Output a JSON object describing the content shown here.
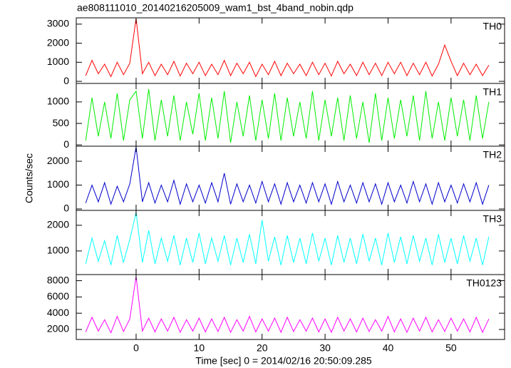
{
  "chart_data": {
    "type": "line",
    "title": "ae808111010_20140216205009_wam1_bst_4band_nobin.qdp",
    "x_label": "Time [sec] 0 = 2014/02/16 20:50:09.285",
    "y_label": "Counts/sec",
    "x": [
      -8,
      -7,
      -6,
      -5,
      -4,
      -3,
      -2,
      -1,
      0,
      1,
      2,
      3,
      4,
      5,
      6,
      7,
      8,
      9,
      10,
      11,
      12,
      13,
      14,
      15,
      16,
      17,
      18,
      19,
      20,
      21,
      22,
      23,
      24,
      25,
      26,
      27,
      28,
      29,
      30,
      31,
      32,
      33,
      34,
      35,
      36,
      37,
      38,
      39,
      40,
      41,
      42,
      43,
      44,
      45,
      46,
      47,
      48,
      49,
      50,
      51,
      52,
      53,
      54,
      55,
      56
    ],
    "xlim": [
      -9.5,
      58.5
    ],
    "xticks": [
      0,
      10,
      20,
      30,
      40,
      50
    ],
    "series": [
      {
        "name": "TH0",
        "color": "#ff0000",
        "ylim": [
          -110,
          3330
        ],
        "yticks": [
          0,
          1000,
          2000,
          3000
        ],
        "values": [
          300,
          1100,
          400,
          900,
          250,
          1000,
          350,
          950,
          3300,
          400,
          1000,
          300,
          900,
          350,
          1050,
          280,
          950,
          400,
          1000,
          300,
          900,
          350,
          1100,
          300,
          950,
          400,
          1000,
          250,
          900,
          350,
          1050,
          300,
          950,
          400,
          900,
          300,
          1000,
          350,
          950,
          280,
          1050,
          400,
          900,
          300,
          1000,
          350,
          950,
          300,
          1000,
          400,
          1000,
          300,
          950,
          350,
          1000,
          280,
          900,
          1900,
          1050,
          300,
          950,
          350,
          900,
          300,
          850
        ]
      },
      {
        "name": "TH1",
        "color": "#00ee00",
        "ylim": [
          -30,
          1430
        ],
        "yticks": [
          0,
          500,
          1000
        ],
        "values": [
          100,
          1100,
          200,
          1000,
          150,
          1200,
          100,
          1050,
          1250,
          150,
          1300,
          100,
          1050,
          200,
          1150,
          100,
          1000,
          250,
          1200,
          100,
          1100,
          150,
          1250,
          50,
          1000,
          200,
          1150,
          100,
          1050,
          150,
          1200,
          100,
          1100,
          200,
          1000,
          150,
          1250,
          100,
          1050,
          200,
          1100,
          100,
          1150,
          150,
          1000,
          50,
          1200,
          100,
          1100,
          150,
          1050,
          200,
          1150,
          100,
          1250,
          150,
          1000,
          100,
          1100,
          200,
          1050,
          100,
          1150,
          150,
          1000
        ]
      },
      {
        "name": "TH2",
        "color": "#0000cc",
        "ylim": [
          -60,
          2630
        ],
        "yticks": [
          0,
          1000,
          2000
        ],
        "values": [
          250,
          1000,
          300,
          1100,
          200,
          950,
          300,
          1050,
          2600,
          300,
          1100,
          250,
          1000,
          300,
          1200,
          200,
          1050,
          300,
          1000,
          250,
          1100,
          300,
          1500,
          200,
          1050,
          300,
          1000,
          250,
          1150,
          300,
          1050,
          200,
          1100,
          300,
          1000,
          250,
          1100,
          300,
          1050,
          200,
          1150,
          300,
          1000,
          250,
          1100,
          300,
          1050,
          200,
          1100,
          300,
          1000,
          250,
          1150,
          300,
          1050,
          200,
          1100,
          300,
          1000,
          250,
          1050,
          300,
          1100,
          200,
          1000
        ]
      },
      {
        "name": "TH3",
        "color": "#00ffff",
        "ylim": [
          80,
          2580
        ],
        "yticks": [
          1000,
          2000
        ],
        "values": [
          500,
          1500,
          600,
          1400,
          450,
          1600,
          550,
          1450,
          2500,
          550,
          1800,
          500,
          1500,
          600,
          1600,
          450,
          1500,
          550,
          1700,
          500,
          1500,
          600,
          1600,
          450,
          1500,
          550,
          1650,
          500,
          2200,
          600,
          1550,
          450,
          1600,
          550,
          1500,
          500,
          1700,
          600,
          1500,
          450,
          1600,
          550,
          1500,
          500,
          1650,
          600,
          1500,
          450,
          1700,
          550,
          1550,
          500,
          1600,
          600,
          1500,
          450,
          1650,
          550,
          1500,
          500,
          1600,
          600,
          1500,
          450,
          1550
        ]
      },
      {
        "name": "TH0123",
        "color": "#ff00ff",
        "ylim": [
          770,
          8750
        ],
        "yticks": [
          2000,
          4000,
          6000,
          8000
        ],
        "values": [
          1700,
          3500,
          1800,
          3200,
          1600,
          3600,
          1750,
          3300,
          8500,
          1800,
          3400,
          1700,
          3300,
          1800,
          3500,
          1650,
          3200,
          1800,
          3400,
          1700,
          3300,
          1750,
          3500,
          1650,
          3200,
          1800,
          3600,
          1700,
          3300,
          1800,
          3400,
          1650,
          3500,
          1750,
          3200,
          1800,
          3400,
          1700,
          3300,
          1650,
          3500,
          1800,
          3300,
          1700,
          3400,
          1750,
          3200,
          1800,
          3600,
          1700,
          3300,
          1650,
          3400,
          1800,
          3500,
          1700,
          3200,
          1750,
          3400,
          1800,
          3300,
          1700,
          3500,
          1650,
          3300
        ]
      }
    ]
  }
}
